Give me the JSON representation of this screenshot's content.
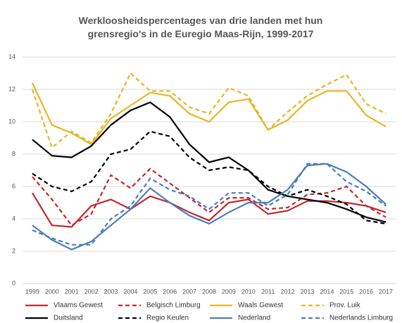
{
  "chart_data": {
    "type": "line",
    "title": "Werkloosheidspercentages van drie landen met hun grensregio's in de Euregio Maas-Rijn, 1999-2017",
    "categories": [
      "1999",
      "2000",
      "2001",
      "2002",
      "2003",
      "2004",
      "2005",
      "2006",
      "2007",
      "2008",
      "2009",
      "2010",
      "2011",
      "2012",
      "2013",
      "2014",
      "2015",
      "2016",
      "2017"
    ],
    "ylim": [
      0,
      14
    ],
    "yticks": [
      0,
      2,
      4,
      6,
      8,
      10,
      12,
      14
    ],
    "grid": true,
    "legend": "bottom",
    "series": [
      {
        "name": "Vlaams Gewest",
        "color": "#c4262e",
        "dashed": false,
        "values": [
          5.6,
          3.6,
          3.5,
          4.8,
          5.2,
          4.6,
          5.4,
          5.0,
          4.4,
          3.9,
          5.0,
          5.2,
          4.3,
          4.5,
          5.1,
          5.1,
          5.0,
          4.8,
          4.4
        ]
      },
      {
        "name": "Belgisch Limburg",
        "color": "#c4262e",
        "dashed": true,
        "values": [
          6.6,
          5.2,
          3.6,
          4.3,
          6.7,
          5.9,
          7.1,
          6.2,
          5.3,
          4.4,
          5.3,
          5.3,
          4.6,
          4.7,
          5.5,
          5.6,
          6.0,
          4.8,
          4.1
        ]
      },
      {
        "name": "Waals Gewest",
        "color": "#e8b525",
        "dashed": false,
        "values": [
          12.4,
          9.8,
          9.3,
          8.6,
          10.2,
          11.0,
          11.8,
          11.6,
          10.5,
          10.0,
          11.2,
          11.4,
          9.5,
          10.1,
          11.3,
          11.9,
          11.9,
          10.4,
          9.7
        ]
      },
      {
        "name": "Prov. Luik",
        "color": "#e8b525",
        "dashed": true,
        "values": [
          12.0,
          8.4,
          9.4,
          8.7,
          10.5,
          13.0,
          11.9,
          11.9,
          10.9,
          10.5,
          12.1,
          11.6,
          9.5,
          10.6,
          11.6,
          12.3,
          12.9,
          11.1,
          10.5
        ]
      },
      {
        "name": "Duitsland",
        "color": "#000000",
        "dashed": false,
        "values": [
          8.9,
          7.9,
          7.8,
          8.5,
          9.8,
          10.7,
          11.2,
          10.3,
          8.6,
          7.5,
          7.8,
          7.0,
          5.8,
          5.4,
          5.2,
          5.0,
          4.6,
          4.1,
          3.8
        ]
      },
      {
        "name": "Regio Keulen",
        "color": "#000000",
        "dashed": true,
        "values": [
          6.8,
          6.0,
          5.7,
          6.3,
          8.0,
          8.3,
          9.4,
          9.1,
          7.8,
          7.0,
          7.2,
          7.0,
          6.0,
          5.4,
          5.8,
          5.4,
          4.9,
          3.9,
          3.7
        ]
      },
      {
        "name": "Nederland",
        "color": "#4a7ebb",
        "dashed": false,
        "values": [
          3.6,
          2.7,
          2.1,
          2.6,
          3.6,
          4.6,
          5.9,
          5.0,
          4.2,
          3.7,
          4.4,
          5.0,
          5.0,
          5.8,
          7.3,
          7.4,
          6.9,
          6.0,
          4.9
        ]
      },
      {
        "name": "Nederlands Limburg",
        "color": "#4a7ebb",
        "dashed": true,
        "values": [
          3.3,
          2.8,
          2.4,
          2.4,
          4.0,
          4.8,
          6.5,
          5.8,
          5.4,
          4.6,
          5.6,
          5.6,
          4.8,
          5.5,
          7.4,
          7.4,
          6.3,
          5.7,
          4.8
        ]
      }
    ]
  }
}
